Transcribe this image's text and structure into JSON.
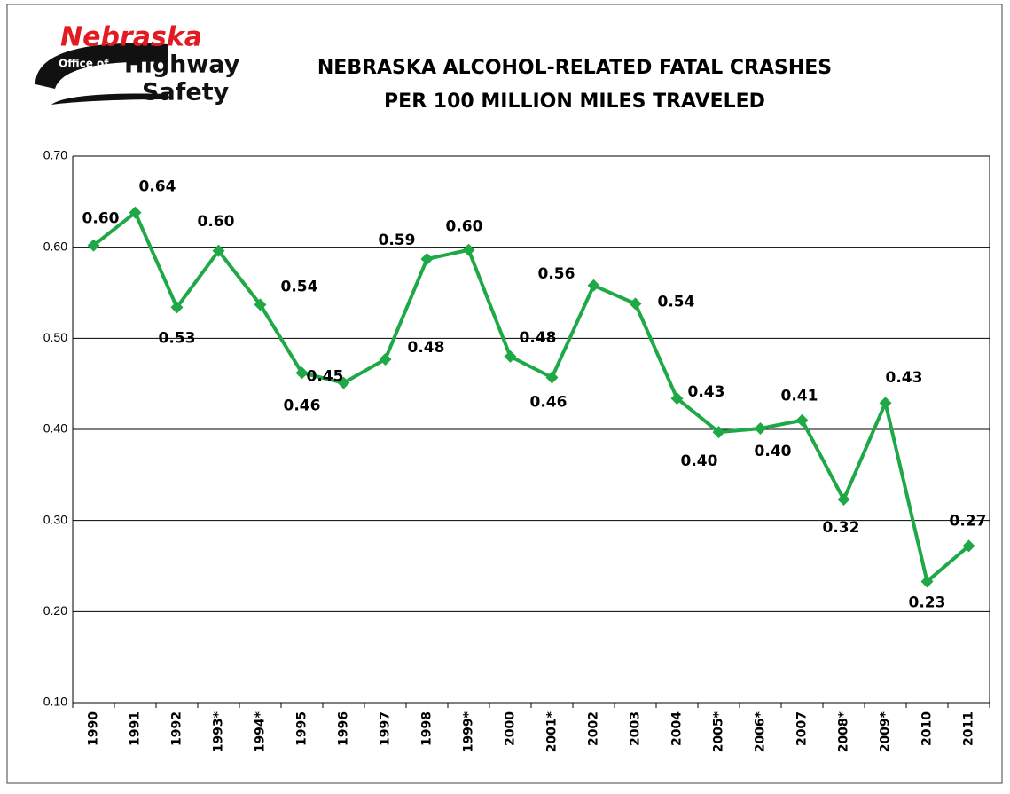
{
  "logo": {
    "lines": [
      "Nebraska",
      "Office of",
      "Highway",
      "Safety"
    ]
  },
  "chart_data": {
    "type": "line",
    "title": [
      "NEBRASKA ALCOHOL-RELATED FATAL CRASHES",
      "PER 100 MILLION MILES TRAVELED"
    ],
    "categories": [
      "1990",
      "1991",
      "1992",
      "1993*",
      "1994*",
      "1995",
      "1996",
      "1997",
      "1998",
      "1999*",
      "2000",
      "2001*",
      "2002",
      "2003",
      "2004",
      "2005*",
      "2006*",
      "2007",
      "2008*",
      "2009*",
      "2010",
      "2011"
    ],
    "series": [
      {
        "color": "#1fa846",
        "values": [
          0.602,
          0.638,
          0.534,
          0.596,
          0.537,
          0.462,
          0.451,
          0.477,
          0.587,
          0.597,
          0.48,
          0.457,
          0.558,
          0.538,
          0.434,
          0.397,
          0.401,
          0.41,
          0.323,
          0.429,
          0.233,
          0.272
        ],
        "value_labels": [
          "0.60",
          "0.64",
          "0.53",
          "0.60",
          "0.54",
          "0.46",
          "0.45",
          "0.48",
          "0.59",
          "0.60",
          "0.48",
          "0.46",
          "0.56",
          "0.54",
          "0.43",
          "0.40",
          "0.40",
          "0.41",
          "0.32",
          "0.43",
          "0.23",
          "0.27"
        ]
      }
    ],
    "ylim": [
      0.1,
      0.7
    ],
    "yticks": [
      {
        "value": 0.1,
        "label": "0.10"
      },
      {
        "value": 0.2,
        "label": "0.20"
      },
      {
        "value": 0.3,
        "label": "0.30"
      },
      {
        "value": 0.4,
        "label": "0.40"
      },
      {
        "value": 0.5,
        "label": "0.50"
      },
      {
        "value": 0.6,
        "label": "0.60"
      },
      {
        "value": 0.7,
        "label": "0.70"
      }
    ],
    "grid": true
  }
}
